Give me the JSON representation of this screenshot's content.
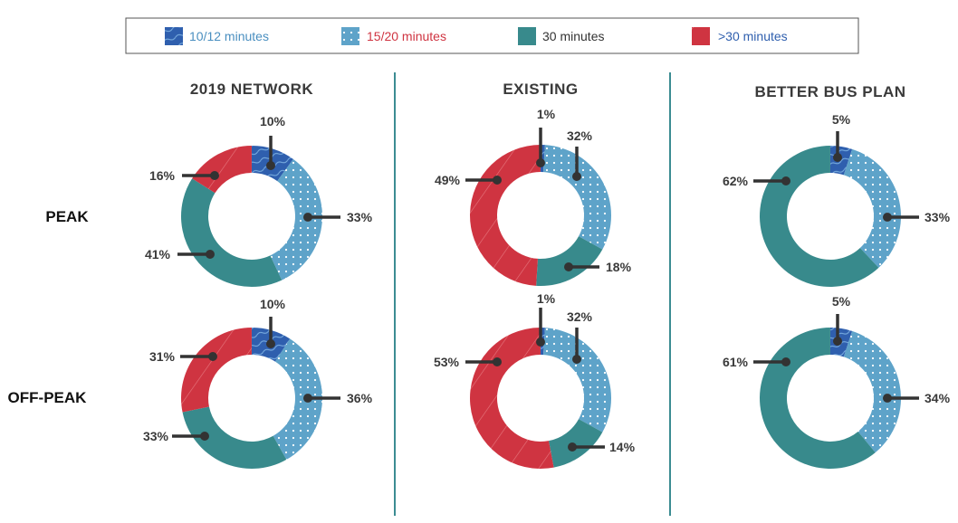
{
  "colors": {
    "10_12": "#2f5fae",
    "15_20": "#5ea3c9",
    "30": "#388a8c",
    "gt30": "#cf3441",
    "leader": "#333333",
    "divider": "#3b8c92",
    "legend_border": "#555555"
  },
  "legend": [
    {
      "label": "10/12 minutes",
      "key": "10_12",
      "text_color": "#4a8fc0",
      "pattern": "waves"
    },
    {
      "label": "15/20 minutes",
      "key": "15_20",
      "text_color": "#cf3441",
      "pattern": "dots"
    },
    {
      "label": "30 minutes",
      "key": "30",
      "text_color": "#333333",
      "pattern": "solid"
    },
    {
      "label": ">30 minutes",
      "key": "gt30",
      "text_color": "#2f5fae",
      "pattern": "stripes"
    }
  ],
  "columns": [
    "2019 NETWORK",
    "EXISTING",
    "BETTER BUS PLAN"
  ],
  "rows": [
    "PEAK",
    "OFF-PEAK"
  ],
  "chart_data": [
    {
      "type": "pie",
      "column": "2019 NETWORK",
      "row": "PEAK",
      "categories": [
        "10/12 minutes",
        "15/20 minutes",
        "30 minutes",
        ">30 minutes"
      ],
      "values": [
        10,
        33,
        41,
        16
      ],
      "labels": [
        "10%",
        "33%",
        "41%",
        "16%"
      ]
    },
    {
      "type": "pie",
      "column": "EXISTING",
      "row": "PEAK",
      "categories": [
        "10/12 minutes",
        "15/20 minutes",
        "30 minutes",
        ">30 minutes"
      ],
      "values": [
        1,
        32,
        18,
        49
      ],
      "labels": [
        "1%",
        "32%",
        "18%",
        "49%"
      ]
    },
    {
      "type": "pie",
      "column": "BETTER BUS PLAN",
      "row": "PEAK",
      "categories": [
        "10/12 minutes",
        "15/20 minutes",
        "30 minutes",
        ">30 minutes"
      ],
      "values": [
        5,
        33,
        62,
        0
      ],
      "labels": [
        "5%",
        "33%",
        "62%",
        ""
      ]
    },
    {
      "type": "pie",
      "column": "2019 NETWORK",
      "row": "OFF-PEAK",
      "categories": [
        "10/12 minutes",
        "15/20 minutes",
        "30 minutes",
        ">30 minutes"
      ],
      "values": [
        10,
        36,
        33,
        31
      ],
      "labels": [
        "10%",
        "36%",
        "33%",
        "31%"
      ]
    },
    {
      "type": "pie",
      "column": "EXISTING",
      "row": "OFF-PEAK",
      "categories": [
        "10/12 minutes",
        "15/20 minutes",
        "30 minutes",
        ">30 minutes"
      ],
      "values": [
        1,
        32,
        14,
        53
      ],
      "labels": [
        "1%",
        "32%",
        "14%",
        "53%"
      ]
    },
    {
      "type": "pie",
      "column": "BETTER BUS PLAN",
      "row": "OFF-PEAK",
      "categories": [
        "10/12 minutes",
        "15/20 minutes",
        "30 minutes",
        ">30 minutes"
      ],
      "values": [
        5,
        34,
        61,
        0
      ],
      "labels": [
        "5%",
        "34%",
        "61%",
        ""
      ]
    }
  ]
}
